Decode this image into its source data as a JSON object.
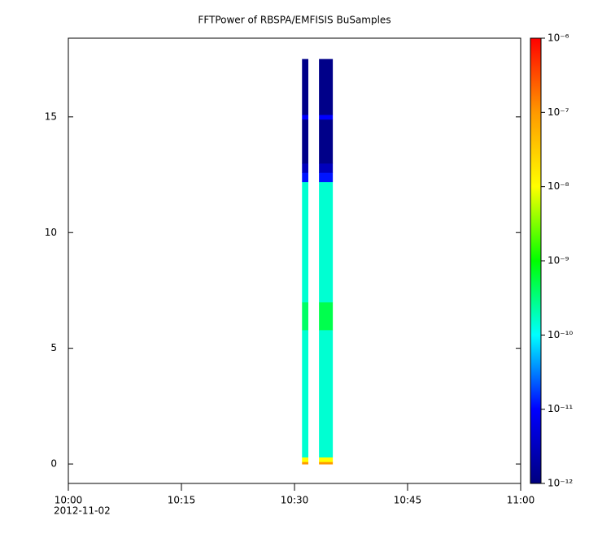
{
  "chart_data": {
    "type": "spectrogram",
    "title": "FFTPower of RBSPA/EMFISIS  BuSamples",
    "xlim": [
      "2012-11-02T10:00",
      "2012-11-02T11:00"
    ],
    "xticks": [
      {
        "value": "2012-11-02T10:00",
        "label": "10:00"
      },
      {
        "value": "2012-11-02T10:15",
        "label": "10:15"
      },
      {
        "value": "2012-11-02T10:30",
        "label": "10:30"
      },
      {
        "value": "2012-11-02T10:45",
        "label": "10:45"
      },
      {
        "value": "2012-11-02T11:00",
        "label": "11:00"
      }
    ],
    "x_date_label": "2012-11-02",
    "ylim": [
      -0.84,
      18.4
    ],
    "yticks": [
      0,
      5,
      10,
      15
    ],
    "y_bins": [
      0,
      0.1,
      0.3,
      5.8,
      7.0,
      12.2,
      12.6,
      13.0,
      14.9,
      15.1,
      17.5
    ],
    "columns": [
      {
        "start": "2012-11-02T10:31:00",
        "end": "2012-11-02T10:31:50",
        "values": [
          1e-07,
          1e-08,
          1.5e-10,
          4e-10,
          1.5e-10,
          1.2e-11,
          3e-12,
          1.2e-12,
          1e-11,
          1.2e-12
        ]
      },
      {
        "start": "2012-11-02T10:33:15",
        "end": "2012-11-02T10:35:05",
        "values": [
          1e-07,
          1e-08,
          1.5e-10,
          5e-10,
          1.5e-10,
          1.2e-11,
          3e-12,
          1.2e-12,
          1e-11,
          1.2e-12
        ]
      }
    ],
    "zlog": true,
    "zlim": [
      1e-12,
      1e-06
    ],
    "zticks": [
      {
        "value": 1e-12,
        "label": "10⁻¹²"
      },
      {
        "value": 1e-11,
        "label": "10⁻¹¹"
      },
      {
        "value": 1e-10,
        "label": "10⁻¹⁰"
      },
      {
        "value": 1e-09,
        "label": "10⁻⁹"
      },
      {
        "value": 1e-08,
        "label": "10⁻⁸"
      },
      {
        "value": 1e-07,
        "label": "10⁻⁷"
      },
      {
        "value": 1e-06,
        "label": "10⁻⁶"
      }
    ],
    "colormap": [
      "#00007f",
      "#0000ff",
      "#00ffff",
      "#00ff00",
      "#ffff00",
      "#ff9900",
      "#ff0000"
    ]
  }
}
